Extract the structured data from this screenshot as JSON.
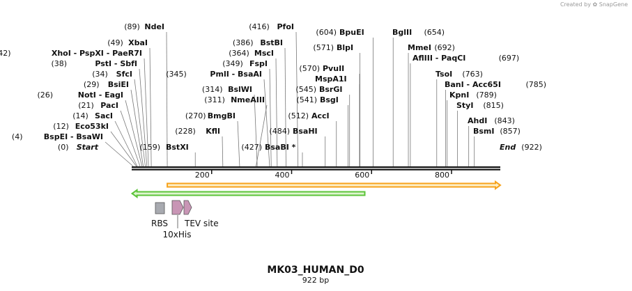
{
  "watermark": {
    "prefix": "Created by",
    "brand": "SnapGene"
  },
  "sequence": {
    "name": "MK03_HUMAN_D0",
    "length_label": "922 bp",
    "length": 922
  },
  "scale_ticks": [
    200,
    400,
    600,
    800
  ],
  "ends": [
    {
      "name": "Start",
      "pos": 0,
      "pos_label": "(0)"
    },
    {
      "name": "End",
      "pos": 922,
      "pos_label": "(922)"
    }
  ],
  "sites": [
    {
      "label": "BspEI  -  BsaWI",
      "pos": 4,
      "pos_label": "(4)",
      "side": "left"
    },
    {
      "label": "Eco53kI",
      "pos": 12,
      "pos_label": "(12)",
      "side": "left"
    },
    {
      "label": "SacI",
      "pos": 14,
      "pos_label": "(14)",
      "side": "left"
    },
    {
      "label": "PacI",
      "pos": 21,
      "pos_label": "(21)",
      "side": "left"
    },
    {
      "label": "NotI  -  EagI",
      "pos": 26,
      "pos_label": "(26)",
      "side": "left"
    },
    {
      "label": "BsiEI",
      "pos": 29,
      "pos_label": "(29)",
      "side": "left"
    },
    {
      "label": "SfcI",
      "pos": 34,
      "pos_label": "(34)",
      "side": "left"
    },
    {
      "label": "PstI  -  SbfI",
      "pos": 38,
      "pos_label": "(38)",
      "side": "left"
    },
    {
      "label": "XhoI  -  PspXI  -  PaeR7I",
      "pos": 42,
      "pos_label": "(42)",
      "side": "left"
    },
    {
      "label": "XbaI",
      "pos": 49,
      "pos_label": "(49)",
      "side": "left"
    },
    {
      "label": "NdeI",
      "pos": 89,
      "pos_label": "(89)",
      "side": "left"
    },
    {
      "label": "BstXI",
      "pos": 159,
      "pos_label": "(159)",
      "side": "right"
    },
    {
      "label": "KflI",
      "pos": 228,
      "pos_label": "(228)",
      "side": "left"
    },
    {
      "label": "BmgBI",
      "pos": 270,
      "pos_label": "(270)",
      "side": "left"
    },
    {
      "label": "NmeAIII",
      "pos": 311,
      "pos_label": "(311)",
      "side": "left"
    },
    {
      "label": "BslWI",
      "pos": 314,
      "pos_label": "(314)",
      "side": "left"
    },
    {
      "label": "PmlI  -  BsaAI",
      "pos": 345,
      "pos_label": "(345)",
      "side": "left"
    },
    {
      "label": "FspI",
      "pos": 349,
      "pos_label": "(349)",
      "side": "left"
    },
    {
      "label": "MscI",
      "pos": 364,
      "pos_label": "(364)",
      "side": "left"
    },
    {
      "label": "BstBI",
      "pos": 386,
      "pos_label": "(386)",
      "side": "left"
    },
    {
      "label": "PfoI",
      "pos": 416,
      "pos_label": "(416)",
      "side": "left"
    },
    {
      "label": "BsaBI *",
      "pos": 427,
      "pos_label": "(427)",
      "side": "right"
    },
    {
      "label": "BsaHI",
      "pos": 484,
      "pos_label": "(484)",
      "side": "right"
    },
    {
      "label": "AccI",
      "pos": 512,
      "pos_label": "(512)",
      "side": "right"
    },
    {
      "label": "BsgI",
      "pos": 541,
      "pos_label": "(541)",
      "side": "right"
    },
    {
      "label": "BsrGI",
      "pos": 545,
      "pos_label": "(545)",
      "side": "right"
    },
    {
      "label": "MspA1I",
      "pos": 570,
      "pos_label": "",
      "side": "right"
    },
    {
      "label": "PvuII",
      "pos": 570,
      "pos_label": "(570)",
      "side": "right"
    },
    {
      "label": "BlpI",
      "pos": 571,
      "pos_label": "(571)",
      "side": "right"
    },
    {
      "label": "BpuEI",
      "pos": 604,
      "pos_label": "(604)",
      "side": "right"
    },
    {
      "label": "BglII",
      "pos": 654,
      "pos_label": "(654)",
      "side": "left-name"
    },
    {
      "label": "MmeI",
      "pos": 692,
      "pos_label": "(692)",
      "side": "left-name"
    },
    {
      "label": "AflIII  -  PaqCI",
      "pos": 697,
      "pos_label": "(697)",
      "side": "left-name"
    },
    {
      "label": "TsoI",
      "pos": 763,
      "pos_label": "(763)",
      "side": "left-name"
    },
    {
      "label": "BanI  -  Acc65I",
      "pos": 785,
      "pos_label": "(785)",
      "side": "left-name"
    },
    {
      "label": "KpnI",
      "pos": 789,
      "pos_label": "(789)",
      "side": "left-name"
    },
    {
      "label": "StyI",
      "pos": 815,
      "pos_label": "(815)",
      "side": "left-name"
    },
    {
      "label": "AhdI",
      "pos": 843,
      "pos_label": "(843)",
      "side": "left-name"
    },
    {
      "label": "BsmI",
      "pos": 857,
      "pos_label": "(857)",
      "side": "left-name"
    }
  ],
  "features": [
    {
      "name": "orange-cds",
      "type": "arrow",
      "start": 89,
      "end": 922,
      "direction": "forward",
      "color": "#f7a21c",
      "fill": "#fdf0c8"
    },
    {
      "name": "green-cds",
      "type": "arrow",
      "start": 1,
      "end": 583,
      "direction": "reverse",
      "color": "#5cc43a",
      "fill": "#dff5d0"
    },
    {
      "name": "RBS",
      "type": "box",
      "color": "#a8aab0"
    },
    {
      "name": "10xHis",
      "type": "arrow",
      "color": "#c895b5"
    },
    {
      "name": "TEV site",
      "type": "arrow",
      "color": "#c895b5"
    }
  ],
  "feature_labels": {
    "rbs": "RBS",
    "his": "10xHis",
    "tev": "TEV site"
  }
}
